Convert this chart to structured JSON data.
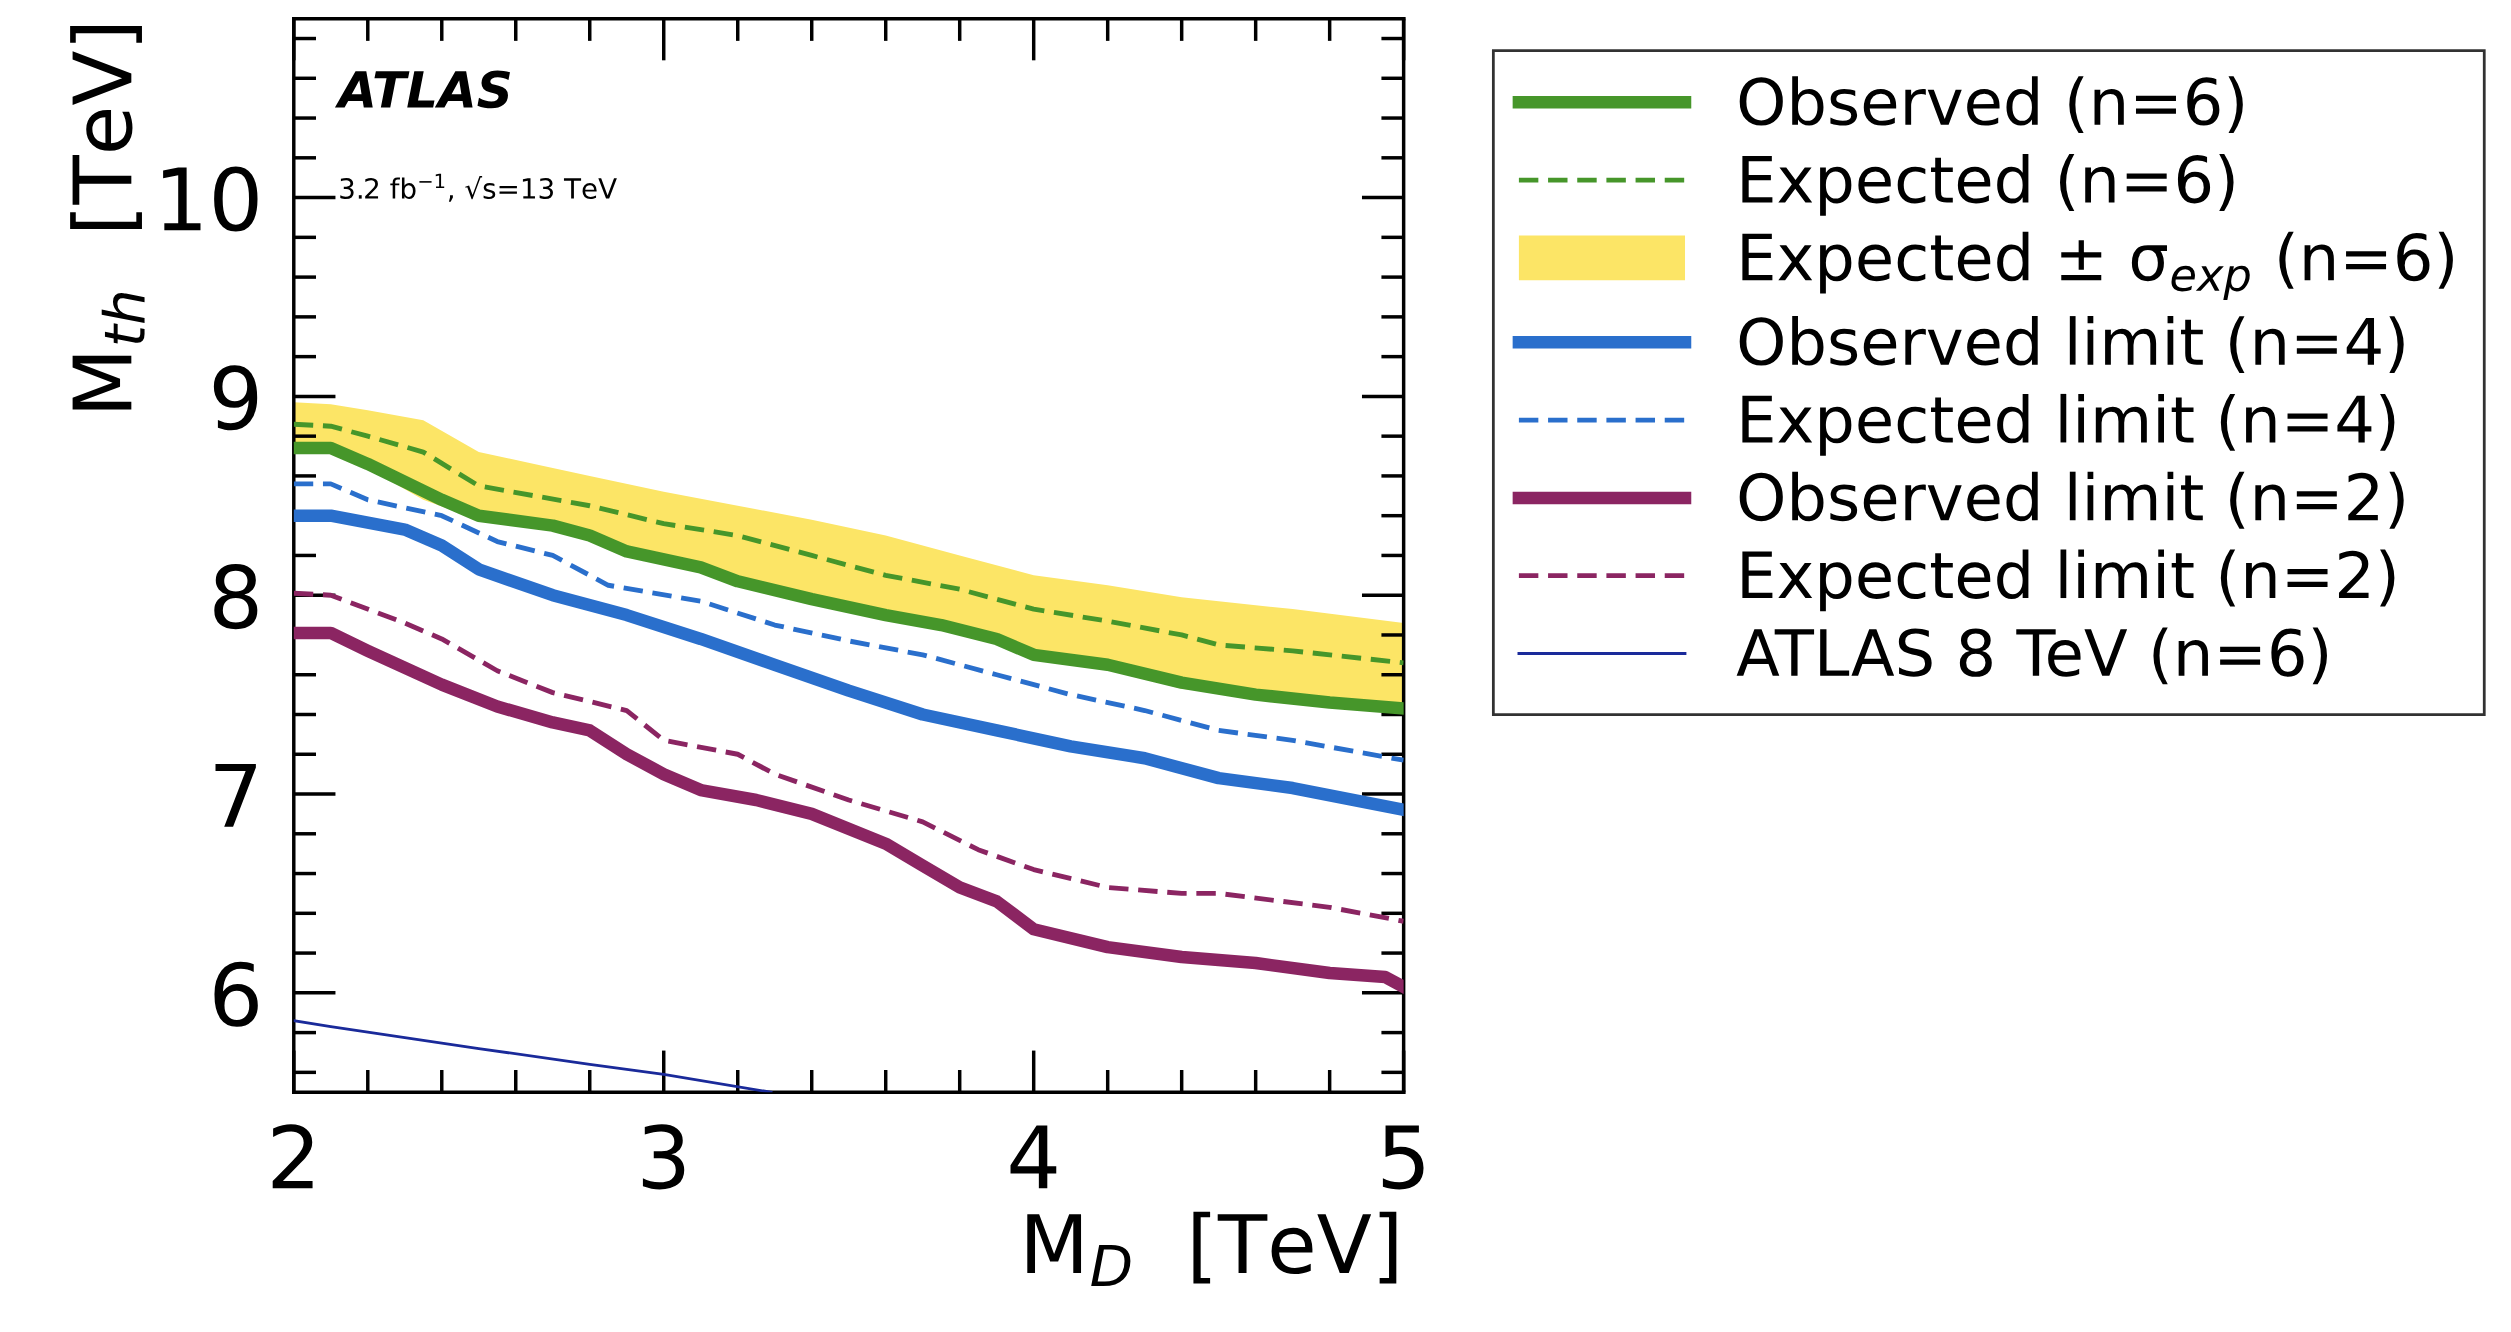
{
  "chart_data": {
    "type": "line",
    "xlabel": "M$_{D}$  [TeV]",
    "ylabel": "M$_{th}$  [TeV]",
    "annotations": [
      "ATLAS",
      "3.2 fb$^{−1}$, √s=13 TeV"
    ],
    "xlim": [
      2,
      5
    ],
    "ylim": [
      5.5,
      10.9
    ],
    "xticks": [
      2,
      3,
      4,
      5
    ],
    "yticks": [
      6,
      7,
      8,
      9,
      10
    ],
    "grid": false,
    "legend": "right",
    "marker": "none",
    "series": [
      {
        "name": "Observed (n=6)",
        "color": "#46962a",
        "line_style": "solid",
        "x": [
          2.0,
          2.1,
          2.2,
          2.4,
          2.5,
          2.7,
          2.8,
          2.9,
          3.1,
          3.2,
          3.4,
          3.6,
          3.75,
          3.9,
          4.0,
          4.2,
          4.4,
          4.6,
          4.8,
          5.0
        ],
        "values": [
          8.74,
          8.74,
          8.66,
          8.48,
          8.4,
          8.35,
          8.3,
          8.22,
          8.14,
          8.07,
          7.98,
          7.9,
          7.85,
          7.78,
          7.7,
          7.65,
          7.56,
          7.5,
          7.46,
          7.43
        ]
      },
      {
        "name": "Expected (n=6)",
        "color": "#46962a",
        "line_style": "dashed",
        "x": [
          2.0,
          2.1,
          2.2,
          2.35,
          2.5,
          2.65,
          2.8,
          3.0,
          3.2,
          3.4,
          3.6,
          3.8,
          4.0,
          4.2,
          4.4,
          4.5,
          4.7,
          5.0
        ],
        "values": [
          8.86,
          8.85,
          8.8,
          8.72,
          8.55,
          8.5,
          8.45,
          8.36,
          8.3,
          8.2,
          8.1,
          8.03,
          7.93,
          7.87,
          7.8,
          7.75,
          7.72,
          7.66
        ],
        "upper": [
          8.97,
          8.96,
          8.93,
          8.88,
          8.72,
          8.66,
          8.6,
          8.52,
          8.45,
          8.38,
          8.3,
          8.2,
          8.1,
          8.05,
          7.99,
          7.97,
          7.93,
          7.86
        ],
        "lower": [
          8.72,
          8.72,
          8.64,
          8.48,
          8.38,
          8.34,
          8.3,
          8.2,
          8.07,
          7.98,
          7.9,
          7.82,
          7.69,
          7.63,
          7.53,
          7.51,
          7.47,
          7.42
        ]
      },
      {
        "name": "Expected ± σ$_{exp}$ (n=6)",
        "color": "#fce566"
      },
      {
        "name": "Observed limit (n=4)",
        "color": "#2a6fcc",
        "line_style": "solid",
        "x": [
          2.0,
          2.1,
          2.3,
          2.4,
          2.5,
          2.7,
          2.9,
          3.1,
          3.3,
          3.5,
          3.7,
          3.9,
          4.1,
          4.3,
          4.5,
          4.7,
          5.0
        ],
        "values": [
          8.4,
          8.4,
          8.33,
          8.25,
          8.13,
          8.0,
          7.9,
          7.78,
          7.65,
          7.52,
          7.4,
          7.32,
          7.24,
          7.18,
          7.08,
          7.03,
          6.92
        ]
      },
      {
        "name": "Expected limit (n=4)",
        "color": "#2a6fcc",
        "line_style": "dashed",
        "x": [
          2.0,
          2.1,
          2.2,
          2.4,
          2.55,
          2.7,
          2.85,
          3.1,
          3.3,
          3.5,
          3.7,
          3.9,
          4.1,
          4.3,
          4.5,
          4.7,
          5.0
        ],
        "values": [
          8.56,
          8.56,
          8.48,
          8.4,
          8.27,
          8.2,
          8.05,
          7.97,
          7.85,
          7.77,
          7.7,
          7.6,
          7.5,
          7.42,
          7.32,
          7.27,
          7.17
        ]
      },
      {
        "name": "Observed limit (n=2)",
        "color": "#8b2562",
        "line_style": "solid",
        "x": [
          2.0,
          2.1,
          2.2,
          2.4,
          2.55,
          2.7,
          2.8,
          2.9,
          3.0,
          3.1,
          3.25,
          3.4,
          3.6,
          3.7,
          3.8,
          3.9,
          4.0,
          4.2,
          4.4,
          4.6,
          4.8,
          4.95,
          5.0
        ],
        "values": [
          7.81,
          7.81,
          7.72,
          7.55,
          7.44,
          7.36,
          7.32,
          7.2,
          7.1,
          7.02,
          6.97,
          6.9,
          6.75,
          6.64,
          6.53,
          6.46,
          6.32,
          6.23,
          6.18,
          6.15,
          6.1,
          6.08,
          6.03
        ]
      },
      {
        "name": "Expected limit (n=2)",
        "color": "#8b2562",
        "line_style": "dashed",
        "x": [
          2.0,
          2.1,
          2.3,
          2.4,
          2.55,
          2.7,
          2.9,
          3.0,
          3.2,
          3.3,
          3.5,
          3.7,
          3.85,
          4.0,
          4.2,
          4.4,
          4.5,
          4.8,
          5.0
        ],
        "values": [
          8.01,
          8.0,
          7.86,
          7.78,
          7.62,
          7.51,
          7.42,
          7.27,
          7.2,
          7.1,
          6.97,
          6.86,
          6.72,
          6.62,
          6.53,
          6.5,
          6.5,
          6.43,
          6.36
        ]
      },
      {
        "name": "ATLAS 8 TeV (n=6)",
        "color": "#1a2a9a",
        "line_style": "solid",
        "x": [
          2.0,
          2.1,
          2.5,
          2.8,
          3.0,
          3.29
        ],
        "values": [
          5.86,
          5.83,
          5.72,
          5.64,
          5.59,
          5.5
        ]
      }
    ]
  }
}
